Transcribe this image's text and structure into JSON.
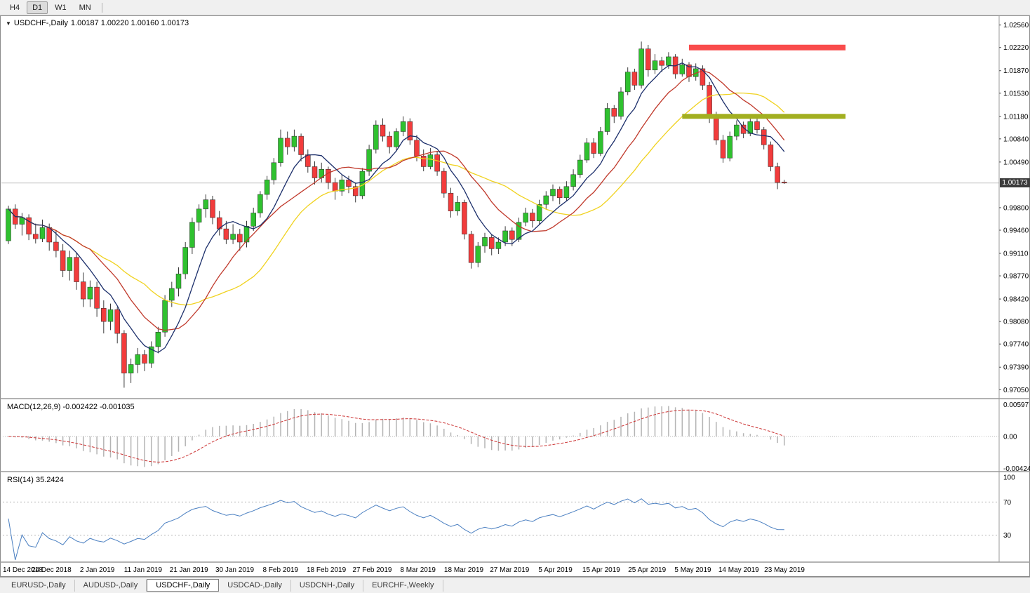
{
  "toolbar": {
    "timeframes": [
      {
        "label": "H4",
        "active": false
      },
      {
        "label": "D1",
        "active": true
      },
      {
        "label": "W1",
        "active": false
      },
      {
        "label": "MN",
        "active": false
      }
    ]
  },
  "chart": {
    "dropdown_icon": "▼",
    "symbol": "USDCHF-,Daily",
    "ohlc_text": "1.00187 1.00220 1.00160 1.00173",
    "current_price_label": "1.00173"
  },
  "indicators": {
    "macd": {
      "label": "MACD(12,26,9) -0.002422 -0.001035",
      "axis": [
        "0.00597",
        "0.00",
        "-0.004243"
      ]
    },
    "rsi": {
      "label": "RSI(14) 35.2424",
      "axis": [
        "100",
        "70",
        "30"
      ]
    }
  },
  "price_axis": {
    "ticks": [
      "1.02560",
      "1.02220",
      "1.01870",
      "1.01530",
      "1.01180",
      "1.00840",
      "1.00490",
      "0.99800",
      "0.99460",
      "0.99110",
      "0.98770",
      "0.98420",
      "0.98080",
      "0.97740",
      "0.97390",
      "0.97050"
    ]
  },
  "time_axis": {
    "labels": [
      "14 Dec 2018",
      "24 Dec 2018",
      "2 Jan 2019",
      "11 Jan 2019",
      "21 Jan 2019",
      "30 Jan 2019",
      "8 Feb 2019",
      "18 Feb 2019",
      "27 Feb 2019",
      "8 Mar 2019",
      "18 Mar 2019",
      "27 Mar 2019",
      "5 Apr 2019",
      "15 Apr 2019",
      "25 Apr 2019",
      "5 May 2019",
      "14 May 2019",
      "23 May 2019"
    ]
  },
  "tabs": [
    {
      "label": "EURUSD-,Daily",
      "active": false
    },
    {
      "label": "AUDUSD-,Daily",
      "active": false
    },
    {
      "label": "USDCHF-,Daily",
      "active": true
    },
    {
      "label": "USDCAD-,Daily",
      "active": false
    },
    {
      "label": "USDCNH-,Daily",
      "active": false
    },
    {
      "label": "EURCHF-,Weekly",
      "active": false
    }
  ],
  "colors": {
    "candle_up": "#2fc12f",
    "candle_down": "#f23c3c",
    "wick": "#3a3a3a",
    "ma_fast": "#1c2f6b",
    "ma_mid": "#c0392b",
    "ma_slow": "#f0d21f",
    "macd_hist": "#b4b4b4",
    "macd_signal": "#cc3333",
    "rsi_line": "#4a7fc1",
    "resistance": "#f94c4c",
    "support": "#a2af20",
    "price_line": "#c4c4c4",
    "grid_dash": "#b8b8b8",
    "separator": "#9a9a9a",
    "badge_bg": "#3c3c3c"
  },
  "chart_data": {
    "type": "candlestick",
    "symbol": "USDCHF-",
    "timeframe": "Daily",
    "title": "USDCHF-,Daily",
    "ohlc_current": {
      "open": 1.00187,
      "high": 1.0022,
      "low": 1.0016,
      "close": 1.00173
    },
    "price_range": {
      "min": 0.97,
      "max": 1.0262
    },
    "candles": [
      [
        0.993,
        0.9983,
        0.9925,
        0.9978
      ],
      [
        0.9978,
        0.9985,
        0.9948,
        0.9955
      ],
      [
        0.9955,
        0.9972,
        0.9938,
        0.9965
      ],
      [
        0.9965,
        0.997,
        0.9931,
        0.994
      ],
      [
        0.994,
        0.9956,
        0.9926,
        0.9933
      ],
      [
        0.9933,
        0.9962,
        0.9928,
        0.995
      ],
      [
        0.995,
        0.9956,
        0.9915,
        0.9928
      ],
      [
        0.9928,
        0.9945,
        0.9905,
        0.9915
      ],
      [
        0.9915,
        0.9925,
        0.9875,
        0.9885
      ],
      [
        0.9885,
        0.9915,
        0.987,
        0.9905
      ],
      [
        0.9905,
        0.9912,
        0.9856,
        0.9868
      ],
      [
        0.9868,
        0.9882,
        0.983,
        0.9842
      ],
      [
        0.9842,
        0.987,
        0.983,
        0.986
      ],
      [
        0.986,
        0.9868,
        0.9815,
        0.9828
      ],
      [
        0.9828,
        0.984,
        0.979,
        0.9808
      ],
      [
        0.9808,
        0.9835,
        0.9795,
        0.9826
      ],
      [
        0.9826,
        0.983,
        0.9775,
        0.979
      ],
      [
        0.979,
        0.9795,
        0.9708,
        0.973
      ],
      [
        0.973,
        0.9752,
        0.9715,
        0.9743
      ],
      [
        0.9743,
        0.9768,
        0.973,
        0.9758
      ],
      [
        0.9758,
        0.9765,
        0.9733,
        0.9745
      ],
      [
        0.9745,
        0.9778,
        0.9738,
        0.977
      ],
      [
        0.977,
        0.98,
        0.976,
        0.9792
      ],
      [
        0.9792,
        0.9848,
        0.9785,
        0.984
      ],
      [
        0.984,
        0.9868,
        0.983,
        0.9858
      ],
      [
        0.9858,
        0.989,
        0.9846,
        0.988
      ],
      [
        0.988,
        0.9928,
        0.9872,
        0.992
      ],
      [
        0.992,
        0.9965,
        0.991,
        0.9958
      ],
      [
        0.9958,
        0.9985,
        0.9945,
        0.9978
      ],
      [
        0.9978,
        1.0,
        0.9965,
        0.9992
      ],
      [
        0.9992,
        0.9998,
        0.9955,
        0.9965
      ],
      [
        0.9965,
        0.9975,
        0.9938,
        0.9948
      ],
      [
        0.9948,
        0.996,
        0.9925,
        0.9932
      ],
      [
        0.9932,
        0.9955,
        0.9925,
        0.994
      ],
      [
        0.994,
        0.9948,
        0.9915,
        0.9928
      ],
      [
        0.9928,
        0.996,
        0.992,
        0.9952
      ],
      [
        0.9952,
        0.998,
        0.9945,
        0.9972
      ],
      [
        0.9972,
        1.0005,
        0.9965,
        1.0
      ],
      [
        1.0,
        1.0028,
        0.9992,
        1.0022
      ],
      [
        1.0022,
        1.0055,
        1.0015,
        1.0048
      ],
      [
        1.0048,
        1.0098,
        1.0042,
        1.0085
      ],
      [
        1.0085,
        1.0095,
        1.006,
        1.0072
      ],
      [
        1.0072,
        1.0098,
        1.0065,
        1.0088
      ],
      [
        1.0088,
        1.0092,
        1.005,
        1.006
      ],
      [
        1.006,
        1.0068,
        1.0033,
        1.0042
      ],
      [
        1.0042,
        1.005,
        1.0015,
        1.0025
      ],
      [
        1.0025,
        1.0048,
        1.0018,
        1.0038
      ],
      [
        1.0038,
        1.0042,
        1.0008,
        1.0018
      ],
      [
        1.0018,
        1.0025,
        0.9992,
        1.0005
      ],
      [
        1.0005,
        1.003,
        0.9998,
        1.0022
      ],
      [
        1.0022,
        1.0028,
        1.0002,
        1.0012
      ],
      [
        1.0012,
        1.0018,
        0.9988,
        0.9998
      ],
      [
        0.9998,
        1.004,
        0.9993,
        1.0035
      ],
      [
        1.0035,
        1.0075,
        1.0028,
        1.0068
      ],
      [
        1.0068,
        1.0112,
        1.0062,
        1.0105
      ],
      [
        1.0105,
        1.0115,
        1.008,
        1.0088
      ],
      [
        1.0088,
        1.0095,
        1.0062,
        1.0072
      ],
      [
        1.0072,
        1.01,
        1.0065,
        1.0095
      ],
      [
        1.0095,
        1.0118,
        1.0088,
        1.011
      ],
      [
        1.011,
        1.0115,
        1.0075,
        1.0082
      ],
      [
        1.0082,
        1.009,
        1.005,
        1.0058
      ],
      [
        1.0058,
        1.0068,
        1.0035,
        1.0042
      ],
      [
        1.0042,
        1.007,
        1.0038,
        1.006
      ],
      [
        1.006,
        1.0065,
        1.0028,
        1.0035
      ],
      [
        1.0035,
        1.004,
        0.9995,
        1.0002
      ],
      [
        1.0002,
        1.001,
        0.9965,
        0.9975
      ],
      [
        0.9975,
        0.9998,
        0.9968,
        0.9988
      ],
      [
        0.9988,
        0.9992,
        0.9932,
        0.994
      ],
      [
        0.994,
        0.9945,
        0.9888,
        0.9897
      ],
      [
        0.9897,
        0.9928,
        0.989,
        0.9922
      ],
      [
        0.9922,
        0.9942,
        0.9912,
        0.9935
      ],
      [
        0.9935,
        0.994,
        0.9908,
        0.9918
      ],
      [
        0.9918,
        0.9935,
        0.991,
        0.9928
      ],
      [
        0.9928,
        0.9952,
        0.9922,
        0.9945
      ],
      [
        0.9945,
        0.995,
        0.9922,
        0.9932
      ],
      [
        0.9932,
        0.9965,
        0.9928,
        0.9958
      ],
      [
        0.9958,
        0.998,
        0.9952,
        0.9972
      ],
      [
        0.9972,
        0.9978,
        0.995,
        0.996
      ],
      [
        0.996,
        0.9992,
        0.9955,
        0.9985
      ],
      [
        0.9985,
        1.0005,
        0.9978,
        0.9998
      ],
      [
        0.9998,
        1.0015,
        0.999,
        1.0008
      ],
      [
        1.0008,
        1.0012,
        0.9985,
        0.9995
      ],
      [
        0.9995,
        1.002,
        0.999,
        1.0012
      ],
      [
        1.0012,
        1.0038,
        1.0006,
        1.003
      ],
      [
        1.003,
        1.006,
        1.0025,
        1.0052
      ],
      [
        1.0052,
        1.0085,
        1.0048,
        1.0078
      ],
      [
        1.0078,
        1.0085,
        1.0055,
        1.0062
      ],
      [
        1.0062,
        1.0102,
        1.0058,
        1.0095
      ],
      [
        1.0095,
        1.0138,
        1.009,
        1.013
      ],
      [
        1.013,
        1.0135,
        1.0108,
        1.0118
      ],
      [
        1.0118,
        1.0162,
        1.0113,
        1.0155
      ],
      [
        1.0155,
        1.0192,
        1.015,
        1.0185
      ],
      [
        1.0185,
        1.019,
        1.0158,
        1.0165
      ],
      [
        1.0165,
        1.0231,
        1.016,
        1.022
      ],
      [
        1.022,
        1.0226,
        1.0178,
        1.0188
      ],
      [
        1.0188,
        1.0212,
        1.0182,
        1.0202
      ],
      [
        1.0202,
        1.0208,
        1.0185,
        1.0195
      ],
      [
        1.0195,
        1.0215,
        1.019,
        1.0208
      ],
      [
        1.0208,
        1.0212,
        1.0175,
        1.0182
      ],
      [
        1.0182,
        1.0205,
        1.0178,
        1.0196
      ],
      [
        1.0196,
        1.02,
        1.017,
        1.0178
      ],
      [
        1.0178,
        1.0198,
        1.0172,
        1.019
      ],
      [
        1.019,
        1.0195,
        1.0158,
        1.0165
      ],
      [
        1.0165,
        1.017,
        1.0108,
        1.0118
      ],
      [
        1.0118,
        1.0125,
        1.0075,
        1.0082
      ],
      [
        1.0082,
        1.009,
        1.0048,
        1.0055
      ],
      [
        1.0055,
        1.0095,
        1.005,
        1.0088
      ],
      [
        1.0088,
        1.0112,
        1.0082,
        1.0105
      ],
      [
        1.0105,
        1.011,
        1.0085,
        1.0092
      ],
      [
        1.0092,
        1.0115,
        1.0088,
        1.011
      ],
      [
        1.011,
        1.0115,
        1.0092,
        1.0098
      ],
      [
        1.0098,
        1.0102,
        1.0068,
        1.0075
      ],
      [
        1.0075,
        1.008,
        1.0035,
        1.0042
      ],
      [
        1.0042,
        1.0048,
        1.0008,
        1.0018
      ],
      [
        1.00187,
        1.0022,
        1.0016,
        1.00173
      ]
    ],
    "overlays": {
      "moving_averages": [
        {
          "name": "slow-ma",
          "period": 21,
          "color": "#f0d21f"
        },
        {
          "name": "mid-ma",
          "period": 13,
          "color": "#c0392b"
        },
        {
          "name": "fast-ma",
          "period": 7,
          "color": "#1c2f6b"
        }
      ],
      "levels": [
        {
          "name": "resistance-zone",
          "price": 1.0222,
          "start_index": 100,
          "end_index": 123,
          "color": "#f94c4c",
          "thickness": 8
        },
        {
          "name": "support-zone",
          "price": 1.0118,
          "start_index": 99,
          "end_index": 123,
          "color": "#a2af20",
          "thickness": 7
        }
      ]
    },
    "indicators": {
      "macd": {
        "fast": 12,
        "slow": 26,
        "signal": 9,
        "value": -0.002422,
        "signal_value": -0.001035
      },
      "rsi": {
        "period": 14,
        "value": 35.2424,
        "levels": [
          70,
          30
        ]
      }
    }
  }
}
